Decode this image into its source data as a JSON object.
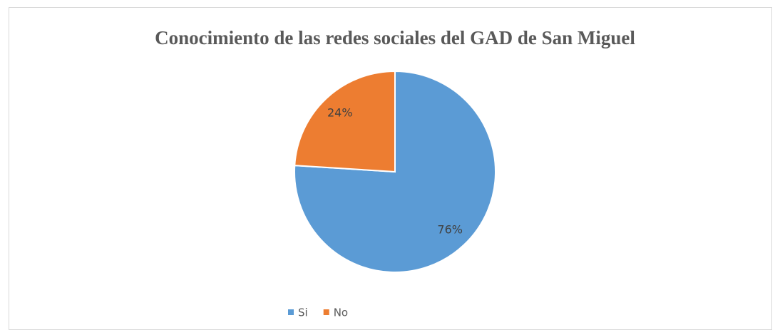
{
  "chart_data": {
    "type": "pie",
    "title": "Conocimiento de las redes sociales del GAD de San Miguel",
    "categories": [
      "Si",
      "No"
    ],
    "values": [
      76,
      24
    ],
    "value_labels": [
      "76%",
      "24%"
    ],
    "colors": [
      "#5b9bd5",
      "#ed7d31"
    ],
    "legend": "bottom"
  }
}
